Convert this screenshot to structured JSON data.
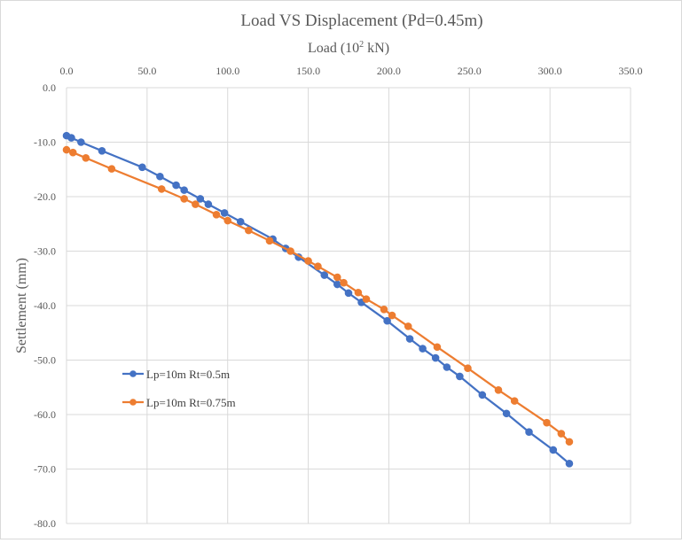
{
  "chart_data": {
    "type": "scatter",
    "title": "Load VS Displacement  (Pd=0.45m)",
    "xlabel_main": "Load (10",
    "xlabel_sup": "2",
    "xlabel_tail": " kN)",
    "ylabel": "Settlement (mm)",
    "xlim": [
      0,
      350
    ],
    "ylim": [
      -80,
      0
    ],
    "x_ticks": [
      "0.0",
      "50.0",
      "100.0",
      "150.0",
      "200.0",
      "250.0",
      "300.0",
      "350.0"
    ],
    "y_ticks": [
      "0.0",
      "-10.0",
      "-20.0",
      "-30.0",
      "-40.0",
      "-50.0",
      "-60.0",
      "-70.0",
      "-80.0"
    ],
    "x_axis_position": "top",
    "grid": true,
    "series": [
      {
        "name": "Lp=10m Rt=0.5m",
        "color": "#4472c4",
        "x": [
          0,
          3,
          9,
          22,
          47,
          58,
          68,
          73,
          83,
          88,
          98,
          108,
          128,
          136,
          144,
          160,
          168,
          175,
          183,
          199,
          213,
          221,
          229,
          236,
          244,
          258,
          273,
          287,
          302,
          312
        ],
        "y": [
          -8.8,
          -9.2,
          -10.0,
          -11.6,
          -14.6,
          -16.3,
          -17.9,
          -18.8,
          -20.4,
          -21.4,
          -23.0,
          -24.6,
          -27.8,
          -29.5,
          -31.1,
          -34.4,
          -36.1,
          -37.7,
          -39.4,
          -42.8,
          -46.1,
          -47.9,
          -49.6,
          -51.3,
          -53.0,
          -56.4,
          -59.8,
          -63.2,
          -66.5,
          -69.0
        ]
      },
      {
        "name": "Lp=10m Rt=0.75m",
        "color": "#ed7d31",
        "x": [
          0,
          4,
          12,
          28,
          59,
          73,
          80,
          93,
          100,
          113,
          126,
          139,
          150,
          156,
          168,
          172,
          181,
          186,
          197,
          202,
          212,
          230,
          249,
          268,
          278,
          298,
          307,
          312
        ],
        "y": [
          -11.4,
          -11.9,
          -12.9,
          -14.9,
          -18.6,
          -20.4,
          -21.4,
          -23.3,
          -24.4,
          -26.2,
          -28.1,
          -30.0,
          -31.8,
          -32.8,
          -34.8,
          -35.8,
          -37.6,
          -38.8,
          -40.7,
          -41.8,
          -43.8,
          -47.6,
          -51.5,
          -55.5,
          -57.5,
          -61.5,
          -63.5,
          -65.0
        ]
      }
    ]
  }
}
